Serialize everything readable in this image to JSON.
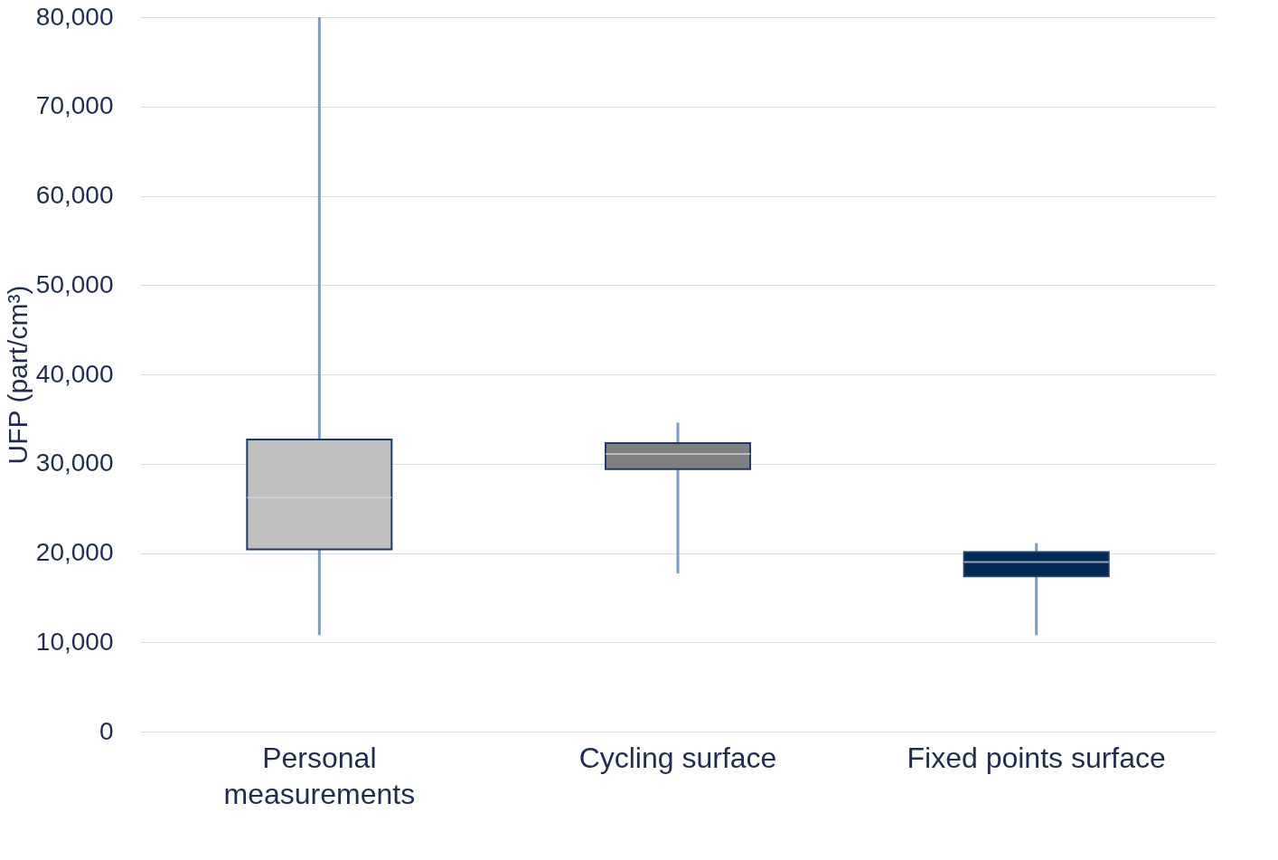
{
  "chart_data": {
    "type": "box",
    "ylabel": "UFP (part/cm³)",
    "categories": [
      "Personal measurements",
      "Cycling surface",
      "Fixed points surface"
    ],
    "boxes": [
      {
        "low": 10800,
        "q1": 20400,
        "median": 26200,
        "q3": 32700,
        "high": 80000
      },
      {
        "low": 17700,
        "q1": 29400,
        "median": 31100,
        "q3": 32300,
        "high": 34600
      },
      {
        "low": 10800,
        "q1": 17400,
        "median": 19000,
        "q3": 20100,
        "high": 21100
      }
    ],
    "colors": [
      "#bfbfbf",
      "#7f7f7f",
      "#002855"
    ],
    "ylim": [
      0,
      80000
    ],
    "yticks": [
      0,
      {
        "value": 10000,
        "label": "10,000"
      },
      {
        "value": 20000,
        "label": "20,000"
      },
      {
        "value": 30000,
        "label": "30,000"
      },
      {
        "value": 40000,
        "label": "40,000"
      },
      {
        "value": 50000,
        "label": "50,000"
      },
      {
        "value": 60000,
        "label": "60,000"
      },
      {
        "value": 70000,
        "label": "70,000"
      },
      {
        "value": 80000,
        "label": "80,000"
      }
    ],
    "grid": "y"
  }
}
